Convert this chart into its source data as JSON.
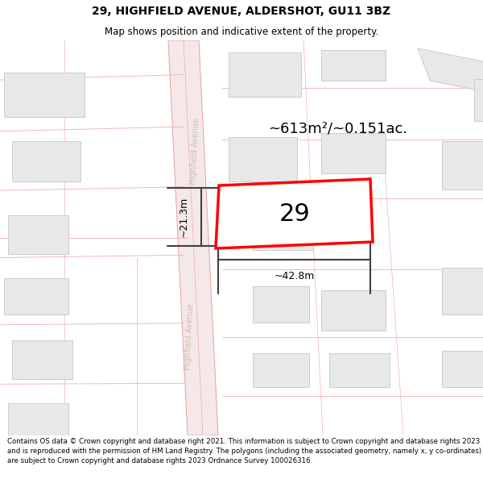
{
  "title": "29, HIGHFIELD AVENUE, ALDERSHOT, GU11 3BZ",
  "subtitle": "Map shows position and indicative extent of the property.",
  "footer": "Contains OS data © Crown copyright and database right 2021. This information is subject to Crown copyright and database rights 2023 and is reproduced with the permission of HM Land Registry. The polygons (including the associated geometry, namely x, y co-ordinates) are subject to Crown copyright and database rights 2023 Ordnance Survey 100026316.",
  "area_label": "~613m²/~0.151ac.",
  "width_label": "~42.8m",
  "height_label": "~21.3m",
  "property_number": "29",
  "map_bg": "#ffffff",
  "road_color": "#f5e8e8",
  "road_line_color": "#e8a0a0",
  "plot_line_color": "#f0b0b0",
  "building_fill": "#e8e8e8",
  "building_stroke": "#cccccc",
  "highlight_fill": "#ffffff",
  "highlight_stroke": "#ff0000",
  "street_label_color": "#c8c0b8",
  "title_fontsize": 10,
  "subtitle_fontsize": 8.5,
  "footer_fontsize": 6.2,
  "dim_color": "#404040"
}
